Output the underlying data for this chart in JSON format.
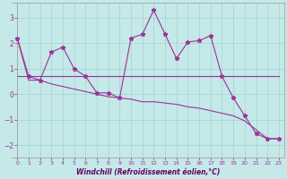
{
  "xlabel": "Windchill (Refroidissement éolien,°C)",
  "background_color": "#c5e8e8",
  "grid_color": "#a8d0d0",
  "line_color": "#993399",
  "xlim": [
    -0.5,
    23.5
  ],
  "ylim": [
    -2.5,
    3.6
  ],
  "yticks": [
    -2,
    -1,
    0,
    1,
    2,
    3
  ],
  "xticks": [
    0,
    1,
    2,
    3,
    4,
    5,
    6,
    7,
    8,
    9,
    10,
    11,
    12,
    13,
    14,
    15,
    16,
    17,
    18,
    19,
    20,
    21,
    22,
    23
  ],
  "x": [
    0,
    1,
    2,
    3,
    4,
    5,
    6,
    7,
    8,
    9,
    10,
    11,
    12,
    13,
    14,
    15,
    16,
    17,
    18,
    19,
    20,
    21,
    22,
    23
  ],
  "y_main": [
    2.2,
    0.7,
    0.55,
    1.65,
    1.85,
    1.0,
    0.7,
    0.05,
    0.05,
    -0.15,
    2.2,
    2.35,
    3.3,
    2.35,
    1.4,
    2.05,
    2.1,
    2.3,
    0.7,
    -0.15,
    -0.85,
    -1.55,
    -1.75,
    -1.75
  ],
  "y_flat": [
    0.7,
    0.7,
    0.7,
    0.7,
    0.7,
    0.7,
    0.7,
    0.7,
    0.7,
    0.7,
    0.7,
    0.7,
    0.7,
    0.7,
    0.7,
    0.7,
    0.7,
    0.7,
    0.7,
    0.7,
    0.7,
    0.7,
    0.7,
    0.7
  ],
  "y_trend": [
    2.2,
    0.55,
    0.55,
    0.4,
    0.3,
    0.2,
    0.1,
    0.0,
    -0.1,
    -0.15,
    -0.2,
    -0.3,
    -0.3,
    -0.35,
    -0.4,
    -0.5,
    -0.55,
    -0.65,
    -0.75,
    -0.85,
    -1.05,
    -1.4,
    -1.75,
    -1.75
  ]
}
